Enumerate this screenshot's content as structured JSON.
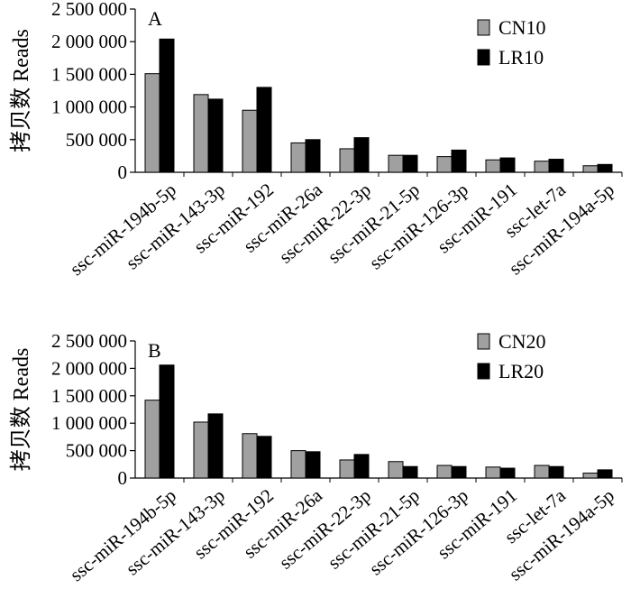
{
  "chart_data": [
    {
      "type": "bar",
      "panel_label": "A",
      "title": "",
      "xlabel": "",
      "ylabel": "拷贝数 Reads",
      "ylim": [
        0,
        2500000
      ],
      "yticks": [
        0,
        500000,
        1000000,
        1500000,
        2000000,
        2500000
      ],
      "ytick_labels": [
        "0",
        "500 000",
        "1 000 000",
        "1 500 000",
        "2 000 000",
        "2 500 000"
      ],
      "categories": [
        "ssc-miR-194b-5p",
        "ssc-miR-143-3p",
        "ssc-miR-192",
        "ssc-miR-26a",
        "ssc-miR-22-3p",
        "ssc-miR-21-5p",
        "ssc-miR-126-3p",
        "ssc-miR-191",
        "ssc-let-7a",
        "ssc-miR-194a-5p"
      ],
      "series": [
        {
          "name": "CN10",
          "color": "#a0a0a0",
          "values": [
            1510000,
            1190000,
            950000,
            450000,
            360000,
            260000,
            240000,
            190000,
            170000,
            100000
          ]
        },
        {
          "name": "LR10",
          "color": "#000000",
          "values": [
            2040000,
            1120000,
            1300000,
            500000,
            530000,
            260000,
            340000,
            220000,
            200000,
            120000
          ]
        }
      ],
      "legend": "top-right",
      "grid": false
    },
    {
      "type": "bar",
      "panel_label": "B",
      "title": "",
      "xlabel": "",
      "ylabel": "拷贝数 Reads",
      "ylim": [
        0,
        2500000
      ],
      "yticks": [
        0,
        500000,
        1000000,
        1500000,
        2000000,
        2500000
      ],
      "ytick_labels": [
        "0",
        "500 000",
        "1 000 000",
        "1 500 000",
        "2 000 000",
        "2 500 000"
      ],
      "categories": [
        "ssc-miR-194b-5p",
        "ssc-miR-143-3p",
        "ssc-miR-192",
        "ssc-miR-26a",
        "ssc-miR-22-3p",
        "ssc-miR-21-5p",
        "ssc-miR-126-3p",
        "ssc-miR-191",
        "ssc-let-7a",
        "ssc-miR-194a-5p"
      ],
      "series": [
        {
          "name": "CN20",
          "color": "#a0a0a0",
          "values": [
            1420000,
            1020000,
            810000,
            500000,
            330000,
            300000,
            230000,
            200000,
            230000,
            90000
          ]
        },
        {
          "name": "LR20",
          "color": "#000000",
          "values": [
            2060000,
            1170000,
            760000,
            480000,
            430000,
            210000,
            210000,
            180000,
            210000,
            150000
          ]
        }
      ],
      "legend": "top-right",
      "grid": false
    }
  ]
}
